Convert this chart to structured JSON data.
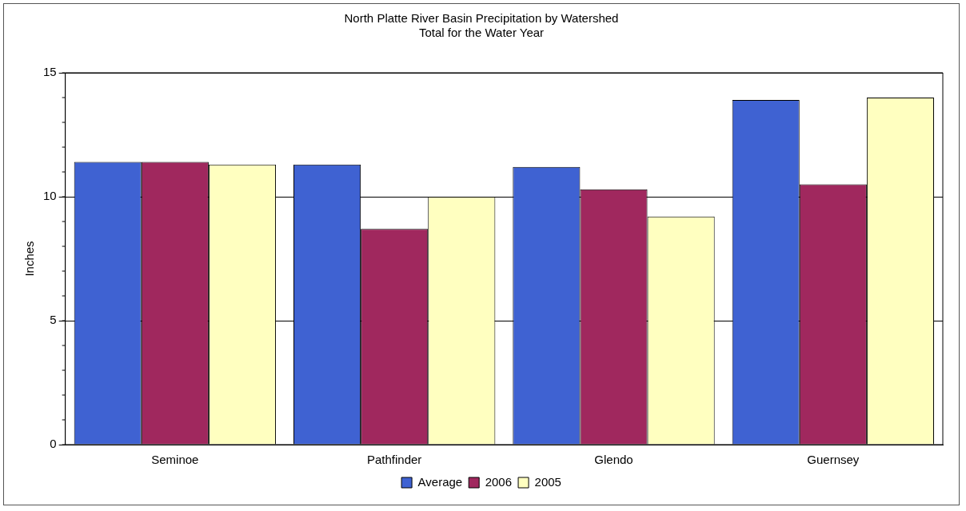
{
  "chart_data": {
    "type": "bar",
    "title": [
      "North Platte River Basin Precipitation by Watershed",
      "Total for the Water Year"
    ],
    "ylabel": "Inches",
    "categories": [
      "Seminoe",
      "Pathfinder",
      "Glendo",
      "Guernsey"
    ],
    "series": [
      {
        "name": "Average",
        "color": "#3f62d2",
        "values": [
          11.4,
          11.3,
          11.2,
          13.9
        ]
      },
      {
        "name": "2006",
        "color": "#a0285e",
        "values": [
          11.4,
          8.7,
          10.3,
          10.5
        ]
      },
      {
        "name": "2005",
        "color": "#ffffc0",
        "values": [
          11.3,
          10.0,
          9.2,
          14.0
        ]
      }
    ],
    "ylim": [
      0,
      15
    ],
    "yticks": [
      0,
      5,
      10,
      15
    ],
    "grid": "y",
    "legend": "bottom"
  }
}
